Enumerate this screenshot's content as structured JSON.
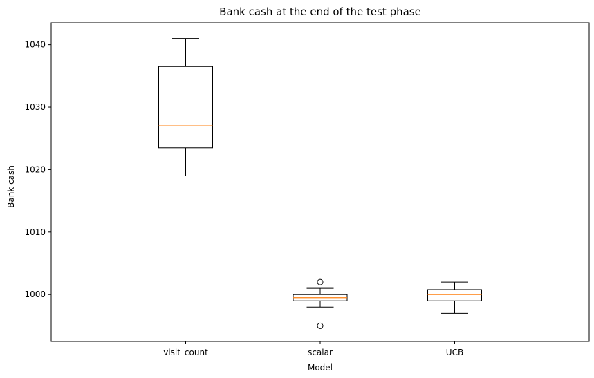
{
  "chart_data": {
    "type": "box",
    "title": "Bank cash at the end of the test phase",
    "xlabel": "Model",
    "ylabel": "Bank cash",
    "ylim": [
      992.5,
      1043.5
    ],
    "yticks": [
      1000,
      1010,
      1020,
      1030,
      1040
    ],
    "ytick_labels": [
      "1000",
      "1010",
      "1020",
      "1030",
      "1040"
    ],
    "grid": false,
    "categories": [
      "visit_count",
      "scalar",
      "UCB"
    ],
    "boxes": [
      {
        "category": "visit_count",
        "whisker_low": 1019,
        "q1": 1023.5,
        "median": 1027,
        "q3": 1036.5,
        "whisker_high": 1041,
        "outliers": []
      },
      {
        "category": "scalar",
        "whisker_low": 998,
        "q1": 999,
        "median": 999.5,
        "q3": 1000,
        "whisker_high": 1001,
        "outliers": [
          1002,
          995
        ]
      },
      {
        "category": "UCB",
        "whisker_low": 997,
        "q1": 999,
        "median": 1000,
        "q3": 1000.8,
        "whisker_high": 1002,
        "outliers": []
      }
    ],
    "colors": {
      "box": "#000000",
      "median": "#ff7f0e",
      "outlier": "#000000"
    }
  }
}
